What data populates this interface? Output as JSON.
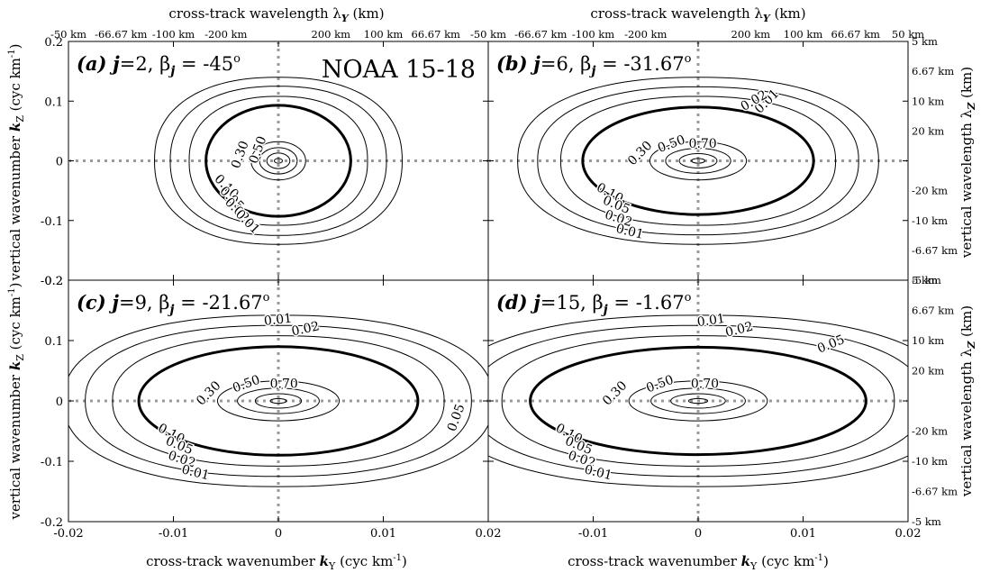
{
  "chart_data": {
    "type": "contour",
    "figure_label": "NOAA 15-18",
    "bottom_xlabel": "cross-track wavenumber k_Y (cyc km⁻¹)",
    "top_xlabel": "cross-track wavelength λ_Y (km)",
    "left_ylabel": "vertical wavenumber k_Z (cyc km⁻¹)",
    "right_ylabel": "vertical wavelength λ_Z (km)",
    "xlim": [
      -0.02,
      0.02
    ],
    "ylim": [
      -0.2,
      0.2
    ],
    "x_ticks": [
      "-0.02",
      "-0.01",
      "0",
      "0.01",
      "0.02"
    ],
    "y_ticks": [
      "-0.2",
      "-0.1",
      "0",
      "0.1",
      "0.2"
    ],
    "top_ticks": [
      "-50 km",
      "-66.67 km",
      "-100 km",
      "-200 km",
      "200 km",
      "100 km",
      "66.67 km",
      "50 km"
    ],
    "right_ticks": [
      "5 km",
      "6.67 km",
      "10 km",
      "20 km",
      "-20 km",
      "-10 km",
      "-6.67 km",
      "-5 km"
    ],
    "bold_level": "0.10",
    "contour_levels": [
      "0.01",
      "0.02",
      "0.05",
      "0.10",
      "0.30",
      "0.50",
      "0.70"
    ],
    "grid": "dotted lines at k_Y = 0 and k_Z = 0",
    "panels": [
      {
        "label": "(a)",
        "j": "2",
        "beta": "-45",
        "ellipses": [
          [
            0.0069,
            0.093
          ],
          [
            0.0026,
            0.032
          ],
          [
            0.0018,
            0.022
          ],
          [
            0.0011,
            0.013
          ]
        ],
        "outer_contours": [
          [
            0.0085,
            0.108
          ],
          [
            0.0103,
            0.125
          ],
          [
            0.0118,
            0.14
          ]
        ],
        "labels": [
          "0.30",
          "0.50",
          "0.10",
          "0.05",
          "0.02",
          "0.01"
        ]
      },
      {
        "label": "(b)",
        "j": "6",
        "beta": "-31.67",
        "ellipses": [
          [
            0.011,
            0.09
          ],
          [
            0.0046,
            0.032
          ],
          [
            0.0031,
            0.021
          ],
          [
            0.0018,
            0.012
          ]
        ],
        "outer_contours": [
          [
            0.0131,
            0.108
          ],
          [
            0.0153,
            0.124
          ],
          [
            0.0172,
            0.14
          ]
        ],
        "labels": [
          "0.30",
          "0.50",
          "0.70",
          "0.10",
          "0.05",
          "0.02",
          "0.01"
        ]
      },
      {
        "label": "(c)",
        "j": "9",
        "beta": "-21.67",
        "ellipses": [
          [
            0.0133,
            0.09
          ],
          [
            0.0058,
            0.033
          ],
          [
            0.0039,
            0.021
          ],
          [
            0.0022,
            0.012
          ]
        ],
        "outer_contours": [
          [
            0.0158,
            0.108
          ],
          [
            0.0184,
            0.125
          ],
          [
            0.0205,
            0.142
          ]
        ],
        "labels": [
          "0.30",
          "0.50",
          "0.70",
          "0.10",
          "0.05",
          "0.02",
          "0.01"
        ]
      },
      {
        "label": "(d)",
        "j": "15",
        "beta": "-1.67",
        "ellipses": [
          [
            0.016,
            0.089
          ],
          [
            0.0066,
            0.033
          ],
          [
            0.0045,
            0.021
          ],
          [
            0.0026,
            0.012
          ]
        ],
        "outer_contours": [
          [
            0.0187,
            0.108
          ],
          [
            0.0216,
            0.125
          ],
          [
            0.0243,
            0.142
          ]
        ],
        "labels": [
          "0.30",
          "0.50",
          "0.70",
          "0.10",
          "0.05",
          "0.02",
          "0.01"
        ]
      }
    ]
  }
}
